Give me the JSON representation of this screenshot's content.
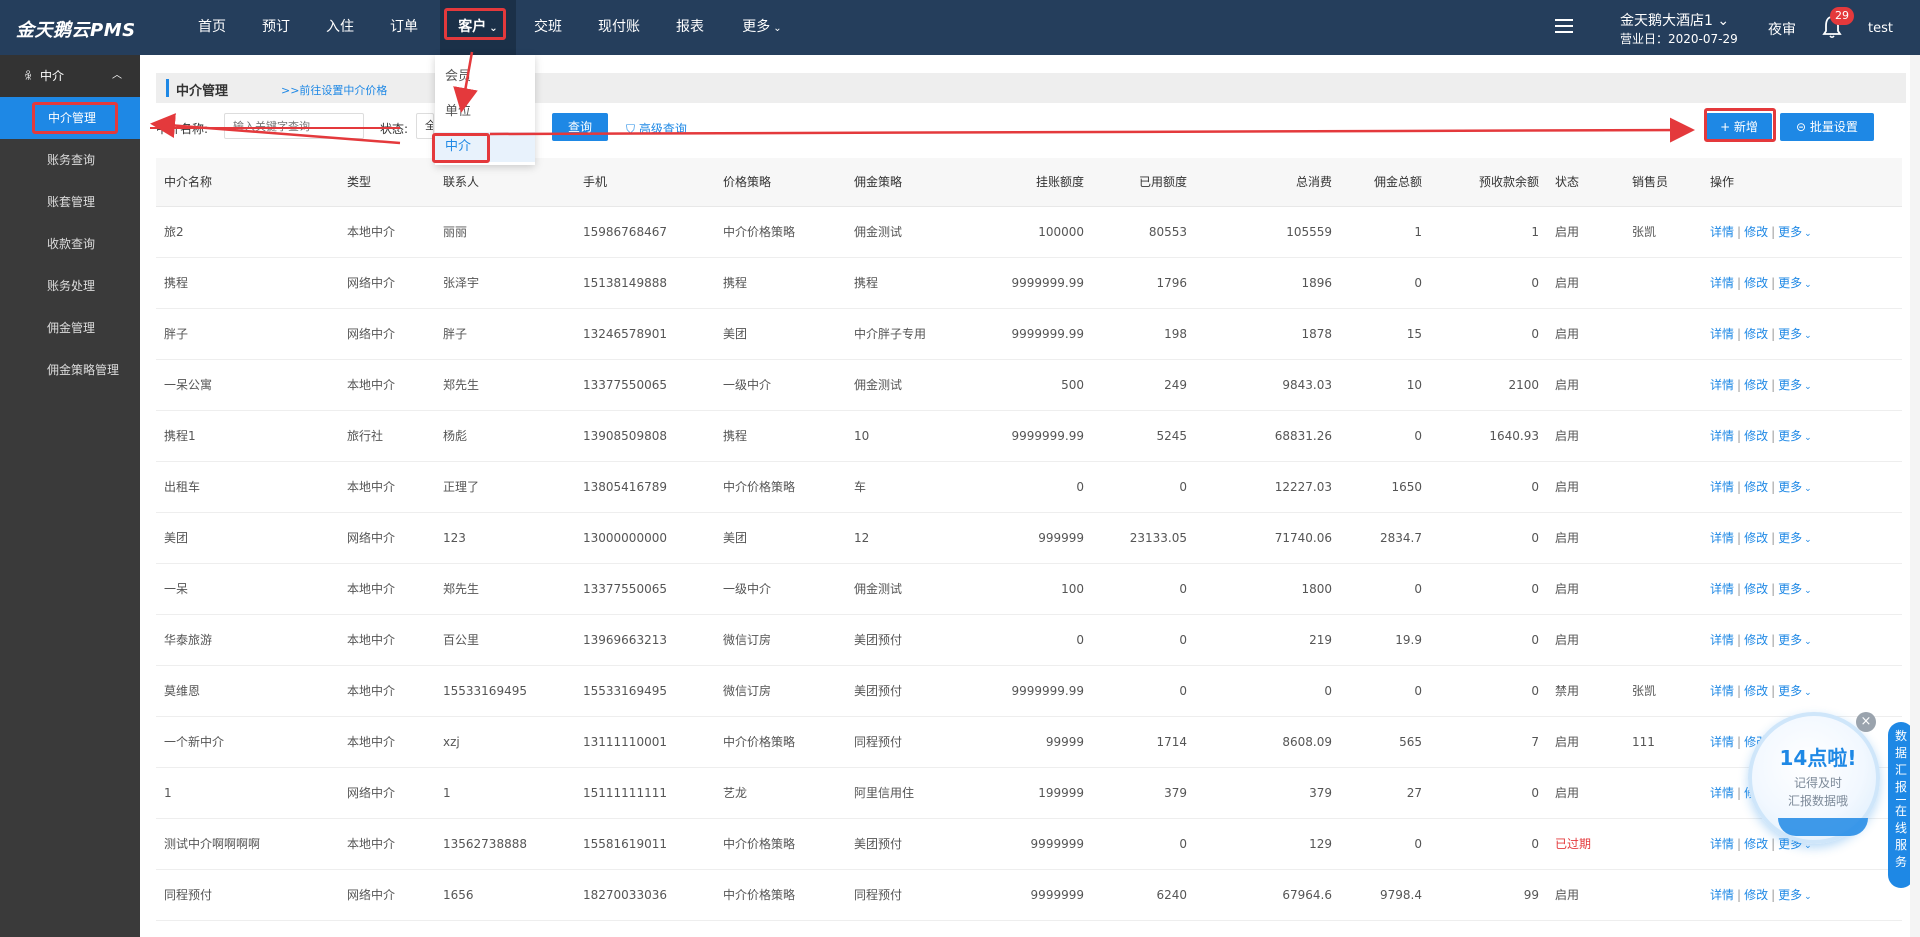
{
  "app": {
    "logo": "金天鹅云PMS"
  },
  "nav": {
    "items": [
      {
        "label": "首页"
      },
      {
        "label": "预订"
      },
      {
        "label": "入住"
      },
      {
        "label": "订单"
      },
      {
        "label": "客户",
        "caret": "⌄"
      },
      {
        "label": "交班"
      },
      {
        "label": "现付账"
      },
      {
        "label": "报表"
      },
      {
        "label": "更多",
        "caret": "⌄"
      }
    ],
    "hotel_name": "金天鹅大酒店1 ⌄",
    "business_date": "营业日：2020-07-29",
    "night_audit": "夜审",
    "notification_count": "29",
    "username": "test"
  },
  "dropdown": {
    "items": [
      {
        "label": "会员"
      },
      {
        "label": "单位"
      },
      {
        "label": "中介"
      }
    ]
  },
  "sidebar": {
    "group": "中介",
    "items": [
      {
        "label": "中介管理"
      },
      {
        "label": "账务查询"
      },
      {
        "label": "账套管理"
      },
      {
        "label": "收款查询"
      },
      {
        "label": "账务处理"
      },
      {
        "label": "佣金管理"
      },
      {
        "label": "佣金策略管理"
      }
    ]
  },
  "page": {
    "title": "中介管理",
    "link": ">>前往设置中介价格",
    "filter": {
      "name_label": "中介名称:",
      "name_placeholder": "输入关键字查询",
      "status_label": "状态:",
      "status_value": "全",
      "search_button": "查询",
      "advanced": "高级查询"
    },
    "add_button": "+ 新增",
    "batch_button": "批量设置"
  },
  "table": {
    "headers": [
      "中介名称",
      "类型",
      "联系人",
      "手机",
      "价格策略",
      "佣金策略",
      "挂账额度",
      "已用额度",
      "总消费",
      "佣金总额",
      "预收款余额",
      "状态",
      "销售员",
      "操作"
    ],
    "ops": {
      "detail": "详情",
      "edit": "修改",
      "more": "更多"
    },
    "rows": [
      {
        "name": "旅2",
        "type": "本地中介",
        "contact": "丽丽",
        "phone": "15986768467",
        "price": "中介价格策略",
        "commission": "佣金测试",
        "credit": "100000",
        "used": "80553",
        "total": "105559",
        "comm_total": "1",
        "prepaid": "1",
        "status": "启用",
        "sales": "张凯"
      },
      {
        "name": "携程",
        "type": "网络中介",
        "contact": "张泽宇",
        "phone": "15138149888",
        "price": "携程",
        "commission": "携程",
        "credit": "9999999.99",
        "used": "1796",
        "total": "1896",
        "comm_total": "0",
        "prepaid": "0",
        "status": "启用",
        "sales": ""
      },
      {
        "name": "胖子",
        "type": "网络中介",
        "contact": "胖子",
        "phone": "13246578901",
        "price": "美团",
        "commission": "中介胖子专用",
        "credit": "9999999.99",
        "used": "198",
        "total": "1878",
        "comm_total": "15",
        "prepaid": "0",
        "status": "启用",
        "sales": ""
      },
      {
        "name": "一呆公寓",
        "type": "本地中介",
        "contact": "郑先生",
        "phone": "13377550065",
        "price": "一级中介",
        "commission": "佣金测试",
        "credit": "500",
        "used": "249",
        "total": "9843.03",
        "comm_total": "10",
        "prepaid": "2100",
        "status": "启用",
        "sales": ""
      },
      {
        "name": "携程1",
        "type": "旅行社",
        "contact": "杨彪",
        "phone": "13908509808",
        "price": "携程",
        "commission": "10",
        "credit": "9999999.99",
        "used": "5245",
        "total": "68831.26",
        "comm_total": "0",
        "prepaid": "1640.93",
        "status": "启用",
        "sales": ""
      },
      {
        "name": "出租车",
        "type": "本地中介",
        "contact": "正理了",
        "phone": "13805416789",
        "price": "中介价格策略",
        "commission": "车",
        "credit": "0",
        "used": "0",
        "total": "12227.03",
        "comm_total": "1650",
        "prepaid": "0",
        "status": "启用",
        "sales": ""
      },
      {
        "name": "美团",
        "type": "网络中介",
        "contact": "123",
        "phone": "13000000000",
        "price": "美团",
        "commission": "12",
        "credit": "999999",
        "used": "23133.05",
        "total": "71740.06",
        "comm_total": "2834.7",
        "prepaid": "0",
        "status": "启用",
        "sales": ""
      },
      {
        "name": "一呆",
        "type": "本地中介",
        "contact": "郑先生",
        "phone": "13377550065",
        "price": "一级中介",
        "commission": "佣金测试",
        "credit": "100",
        "used": "0",
        "total": "1800",
        "comm_total": "0",
        "prepaid": "0",
        "status": "启用",
        "sales": ""
      },
      {
        "name": "华泰旅游",
        "type": "本地中介",
        "contact": "百公里",
        "phone": "13969663213",
        "price": "微信订房",
        "commission": "美团预付",
        "credit": "0",
        "used": "0",
        "total": "219",
        "comm_total": "19.9",
        "prepaid": "0",
        "status": "启用",
        "sales": ""
      },
      {
        "name": "莫维恩",
        "type": "本地中介",
        "contact": "15533169495",
        "phone": "15533169495",
        "price": "微信订房",
        "commission": "美团预付",
        "credit": "9999999.99",
        "used": "0",
        "total": "0",
        "comm_total": "0",
        "prepaid": "0",
        "status": "禁用",
        "sales": "张凯"
      },
      {
        "name": "一个新中介",
        "type": "本地中介",
        "contact": "xzj",
        "phone": "13111110001",
        "price": "中介价格策略",
        "commission": "同程预付",
        "credit": "99999",
        "used": "1714",
        "total": "8608.09",
        "comm_total": "565",
        "prepaid": "7",
        "status": "启用",
        "sales": "111"
      },
      {
        "name": "1",
        "type": "网络中介",
        "contact": "1",
        "phone": "15111111111",
        "price": "艺龙",
        "commission": "阿里信用住",
        "credit": "199999",
        "used": "379",
        "total": "379",
        "comm_total": "27",
        "prepaid": "0",
        "status": "启用",
        "sales": ""
      },
      {
        "name": "测试中介啊啊啊啊",
        "type": "本地中介",
        "contact": "13562738888",
        "phone": "15581619011",
        "price": "中介价格策略",
        "commission": "美团预付",
        "credit": "9999999",
        "used": "0",
        "total": "129",
        "comm_total": "0",
        "prepaid": "0",
        "status": "已过期",
        "sales": ""
      },
      {
        "name": "同程预付",
        "type": "网络中介",
        "contact": "1656",
        "phone": "18270033036",
        "price": "中介价格策略",
        "commission": "同程预付",
        "credit": "9999999",
        "used": "6240",
        "total": "67964.6",
        "comm_total": "9798.4",
        "prepaid": "99",
        "status": "启用",
        "sales": ""
      }
    ]
  },
  "promo": {
    "title": "14点啦!",
    "line1": "记得及时",
    "line2": "汇报数据哦",
    "close": "×",
    "side_tab_top": [
      "数",
      "据",
      "汇",
      "报"
    ],
    "side_tab_bottom": [
      "在",
      "线",
      "服",
      "务"
    ]
  },
  "colors": {
    "topbar": "#253e5c",
    "accent": "#1e88e5",
    "annotation": "#e4393c"
  }
}
